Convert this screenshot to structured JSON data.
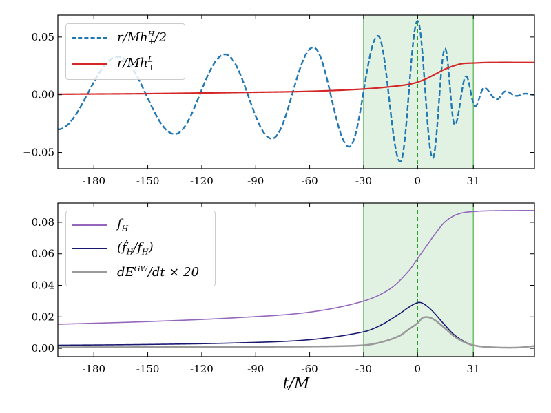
{
  "chart_data": [
    {
      "type": "line",
      "xlim": [
        -200,
        65
      ],
      "ylim": [
        -0.064,
        0.069
      ],
      "x_ticks": [
        -180,
        -150,
        -120,
        -90,
        -60,
        -30,
        0,
        31
      ],
      "x_tick_labels": [
        "-180",
        "-150",
        "-120",
        "-90",
        "-60",
        "-30",
        "0",
        "31"
      ],
      "y_ticks": [
        -0.05,
        0.0,
        0.05
      ],
      "y_tick_labels": [
        "−0.05",
        "0.00",
        "0.05"
      ],
      "shaded_region": {
        "x": [
          -30,
          31
        ],
        "color": "#d8eed8",
        "edge_color": "#6abf6a"
      },
      "vertical_line": {
        "x": 0,
        "color": "#2ca02c",
        "style": "dashed"
      },
      "legend_position": "top-left",
      "series": [
        {
          "name": {
            "main": "r/Mh",
            "sup": "H",
            "sub": "+",
            "tail": "/2"
          },
          "color": "#1f77b4",
          "style": "dashed",
          "interp": "extrema",
          "x": [
            -200,
            -166.5,
            -135,
            -107,
            -81,
            -58,
            -38,
            -22,
            -9.6,
            0,
            8.4,
            15.3,
            20.7,
            27,
            32,
            37,
            44,
            49,
            55,
            60,
            65
          ],
          "y": [
            -0.03,
            0.033,
            -0.034,
            0.035,
            -0.038,
            0.041,
            -0.045,
            0.051,
            -0.058,
            0.064,
            -0.055,
            0.04,
            -0.026,
            0.016,
            -0.01,
            0.006,
            -0.004,
            0.003,
            -0.001,
            0.001,
            0.0
          ]
        },
        {
          "name": {
            "main": "r/Mh",
            "sup": "L",
            "sub": "+",
            "tail": ""
          },
          "color": "#d62728",
          "style": "solid",
          "interp": "smooth",
          "x": [
            -200,
            -150,
            -100,
            -60,
            -30,
            -15,
            -5,
            0,
            5,
            10,
            15,
            20,
            25,
            31,
            40,
            65
          ],
          "y": [
            0.0005,
            0.001,
            0.002,
            0.003,
            0.005,
            0.007,
            0.009,
            0.011,
            0.014,
            0.018,
            0.022,
            0.025,
            0.027,
            0.0275,
            0.028,
            0.028
          ]
        }
      ]
    },
    {
      "type": "line",
      "xlabel": "t/M",
      "xlim": [
        -200,
        65
      ],
      "ylim": [
        -0.0052,
        0.0922
      ],
      "x_ticks": [
        -180,
        -150,
        -120,
        -90,
        -60,
        -30,
        0,
        31
      ],
      "x_tick_labels": [
        "-180",
        "-150",
        "-120",
        "-90",
        "-60",
        "-30",
        "0",
        "31"
      ],
      "y_ticks": [
        0.0,
        0.02,
        0.04,
        0.06,
        0.08
      ],
      "y_tick_labels": [
        "0.00",
        "0.02",
        "0.04",
        "0.06",
        "0.08"
      ],
      "shaded_region": {
        "x": [
          -30,
          31
        ],
        "color": "#d8eed8",
        "edge_color": "#6abf6a"
      },
      "vertical_line": {
        "x": 0,
        "color": "#2ca02c",
        "style": "dashed"
      },
      "legend_position": "top-left",
      "series": [
        {
          "name": {
            "main": "f",
            "sub": "H",
            "sup": "",
            "tail": ""
          },
          "color": "#9467bd",
          "style": "solid",
          "interp": "smooth",
          "x": [
            -200,
            -150,
            -100,
            -60,
            -30,
            -15,
            -5,
            0,
            5,
            10,
            15,
            20,
            25,
            31,
            40,
            65
          ],
          "y": [
            0.0153,
            0.017,
            0.0195,
            0.023,
            0.03,
            0.038,
            0.049,
            0.057,
            0.065,
            0.073,
            0.08,
            0.084,
            0.086,
            0.0868,
            0.0873,
            0.0875
          ]
        },
        {
          "name": {
            "main": "(ḟ",
            "sub": "H",
            "sup": "",
            "tail": "/f",
            "sub2": "H",
            "tail2": ")"
          },
          "color": "#191970",
          "style": "solid",
          "interp": "smooth",
          "x": [
            -200,
            -150,
            -100,
            -60,
            -30,
            -20,
            -10,
            -5,
            0,
            3,
            8,
            15,
            20,
            25,
            31,
            40,
            55,
            65
          ],
          "y": [
            0.002,
            0.0025,
            0.0035,
            0.0055,
            0.0105,
            0.015,
            0.022,
            0.026,
            0.029,
            0.0285,
            0.024,
            0.015,
            0.009,
            0.005,
            0.002,
            0.0007,
            0.0005,
            0.0015
          ]
        },
        {
          "name": {
            "main": "dE",
            "sup": "GW",
            "sub": "",
            "tail": "/dt × 20"
          },
          "color": "#999999",
          "style": "solid",
          "interp": "smooth",
          "x": [
            -200,
            -150,
            -100,
            -60,
            -30,
            -20,
            -10,
            -5,
            0,
            3,
            8,
            15,
            20,
            25,
            31,
            40,
            55,
            65
          ],
          "y": [
            0.0007,
            0.0008,
            0.001,
            0.0012,
            0.002,
            0.004,
            0.008,
            0.012,
            0.016,
            0.0195,
            0.019,
            0.013,
            0.008,
            0.0045,
            0.002,
            0.0008,
            0.0005,
            0.0015
          ]
        }
      ]
    }
  ]
}
